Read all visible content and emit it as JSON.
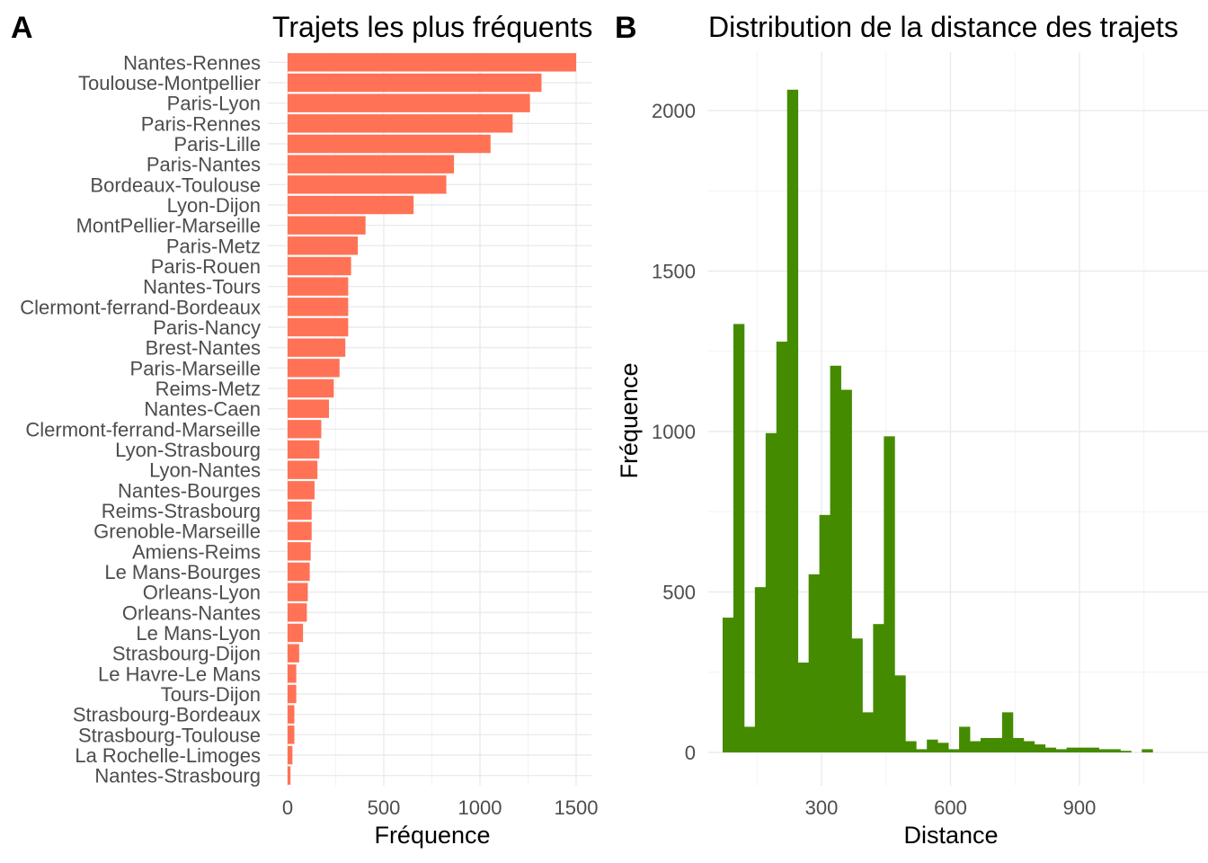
{
  "panels": [
    {
      "tag": "A",
      "chart_data": {
        "type": "bar",
        "orientation": "horizontal",
        "title": "Trajets les plus fréquents",
        "xlabel": "Fréquence",
        "ylabel": "",
        "xlim": [
          0,
          1580
        ],
        "xticks": [
          0,
          500,
          1000,
          1500
        ],
        "xtick_labels": [
          "0",
          "500",
          "1000",
          "1500"
        ],
        "grid": true,
        "bar_color": "#FF7256",
        "categories": [
          "Nantes-Rennes",
          "Toulouse-Montpellier",
          "Paris-Lyon",
          "Paris-Rennes",
          "Paris-Lille",
          "Paris-Nantes",
          "Bordeaux-Toulouse",
          "Lyon-Dijon",
          "MontPellier-Marseille",
          "Paris-Metz",
          "Paris-Rouen",
          "Nantes-Tours",
          "Clermont-ferrand-Bordeaux",
          "Paris-Nancy",
          "Brest-Nantes",
          "Paris-Marseille",
          "Reims-Metz",
          "Nantes-Caen",
          "Clermont-ferrand-Marseille",
          "Lyon-Strasbourg",
          "Lyon-Nantes",
          "Nantes-Bourges",
          "Reims-Strasbourg",
          "Grenoble-Marseille",
          "Amiens-Reims",
          "Le Mans-Bourges",
          "Orleans-Lyon",
          "Orleans-Nantes",
          "Le Mans-Lyon",
          "Strasbourg-Dijon",
          "Le Havre-Le Mans",
          "Tours-Dijon",
          "Strasbourg-Bordeaux",
          "Strasbourg-Toulouse",
          "La Rochelle-Limoges",
          "Nantes-Strasbourg"
        ],
        "values": [
          1500,
          1320,
          1260,
          1170,
          1055,
          865,
          825,
          655,
          405,
          365,
          330,
          315,
          315,
          315,
          300,
          270,
          240,
          215,
          175,
          165,
          155,
          140,
          125,
          125,
          120,
          115,
          105,
          100,
          80,
          60,
          45,
          45,
          35,
          35,
          25,
          15
        ]
      }
    },
    {
      "tag": "B",
      "chart_data": {
        "type": "bar",
        "subtype": "histogram",
        "title": "Distribution de la distance des trajets",
        "xlabel": "Distance",
        "ylabel": "Fréquence",
        "xlim": [
          0,
          1150
        ],
        "ylim": [
          0,
          2180
        ],
        "xticks": [
          300,
          600,
          900
        ],
        "xtick_labels": [
          "300",
          "600",
          "900"
        ],
        "yticks": [
          0,
          500,
          1000,
          1500,
          2000
        ],
        "ytick_labels": [
          "0",
          "500",
          "1000",
          "1500",
          "2000"
        ],
        "grid": true,
        "bar_color": "#458B00",
        "bin_width": 25,
        "bin_starts": [
          70,
          95,
          120,
          145,
          170,
          195,
          220,
          245,
          270,
          295,
          320,
          345,
          370,
          395,
          420,
          445,
          470,
          495,
          520,
          545,
          570,
          595,
          620,
          645,
          670,
          695,
          720,
          745,
          770,
          795,
          820,
          845,
          870,
          895,
          920,
          945,
          970,
          995,
          1020,
          1045,
          1070,
          1095,
          1120
        ],
        "counts": [
          420,
          1335,
          80,
          515,
          995,
          1280,
          2065,
          280,
          555,
          740,
          1205,
          1130,
          355,
          125,
          400,
          985,
          240,
          35,
          10,
          40,
          30,
          10,
          80,
          35,
          45,
          45,
          125,
          45,
          35,
          25,
          15,
          10,
          15,
          15,
          15,
          10,
          10,
          5,
          0,
          10,
          0,
          0,
          0
        ]
      }
    }
  ]
}
